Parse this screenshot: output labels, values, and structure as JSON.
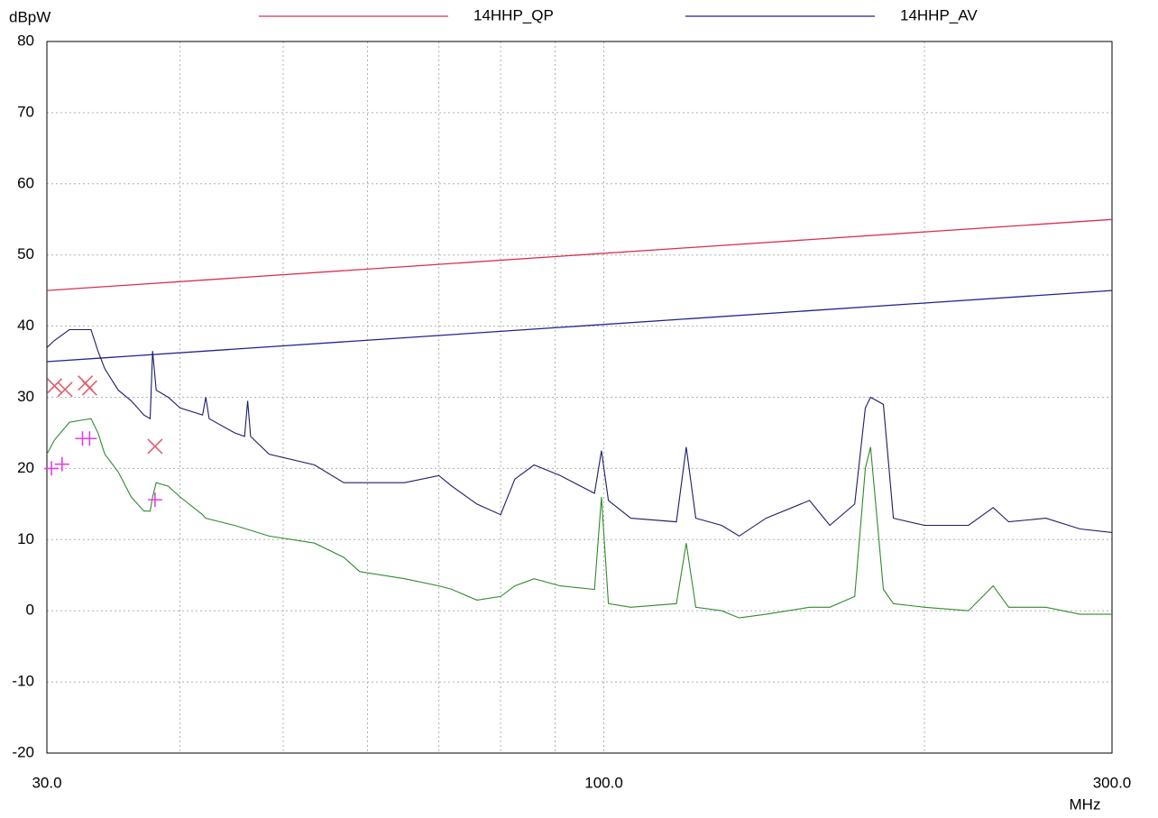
{
  "chart_data": {
    "type": "line",
    "y_label": "dBpW",
    "x_label": "MHz",
    "xscale": "log",
    "xlim": [
      30,
      300
    ],
    "ylim": [
      -20,
      80
    ],
    "yticks": [
      -20,
      -10,
      0,
      10,
      20,
      30,
      40,
      50,
      60,
      70,
      80
    ],
    "xticks": [
      {
        "value": 30,
        "label": "30.0"
      },
      {
        "value": 100,
        "label": "100.0"
      },
      {
        "value": 300,
        "label": "300.0"
      }
    ],
    "x_grid": [
      40,
      50,
      60,
      70,
      80,
      90,
      200
    ],
    "grid": true,
    "series": [
      {
        "name": "14HHP_QP",
        "color": "#d9304f",
        "x": [
          30,
          300
        ],
        "values": [
          45,
          55
        ]
      },
      {
        "name": "14HHP_AV",
        "color": "#23238f",
        "x": [
          30,
          300
        ],
        "values": [
          35,
          45
        ]
      }
    ],
    "traces": [
      {
        "color": "#1c1c6b",
        "x": [
          30,
          30.5,
          31.5,
          33,
          33.5,
          34,
          35,
          36,
          37,
          37.5,
          37.7,
          38,
          39,
          40,
          42,
          42.3,
          42.6,
          45,
          46,
          46.3,
          46.6,
          48.5,
          53.5,
          57,
          59,
          65,
          70,
          72,
          76,
          80,
          82.5,
          86,
          91,
          98,
          99.5,
          101,
          106,
          117,
          119.5,
          122,
          129,
          134,
          142,
          156,
          163,
          172,
          176,
          178,
          183,
          187,
          200,
          220,
          232,
          240,
          260,
          280,
          300
        ],
        "values": [
          37,
          38,
          39.5,
          39.5,
          36.5,
          34,
          31,
          29.5,
          27.5,
          27,
          36.5,
          31,
          30,
          28.5,
          27.5,
          30,
          27,
          25,
          24.5,
          29.5,
          24.5,
          22,
          20.5,
          18,
          18,
          18,
          19,
          17.5,
          15,
          13.5,
          18.5,
          20.5,
          19,
          16.5,
          22.5,
          15.5,
          13,
          12.5,
          23,
          13,
          12,
          10.5,
          13,
          15.5,
          12,
          15,
          28.5,
          30,
          29,
          13,
          12,
          12,
          14.5,
          12.5,
          13,
          11.5,
          11
        ]
      },
      {
        "color": "#2e8b2e",
        "x": [
          30,
          30.5,
          31.5,
          33,
          33.5,
          34,
          35,
          36,
          37,
          37.5,
          37.7,
          38,
          39,
          40,
          42,
          42.3,
          45,
          48.5,
          53.5,
          57,
          59,
          65,
          70,
          72,
          76,
          80,
          82.5,
          86,
          91,
          98,
          99.5,
          101,
          106,
          117,
          119.5,
          122,
          129,
          134,
          142,
          156,
          163,
          172,
          176,
          178,
          183,
          187,
          200,
          220,
          232,
          240,
          260,
          280,
          300
        ],
        "values": [
          22,
          24,
          26.5,
          27,
          25,
          22,
          19.5,
          16,
          14,
          14,
          16,
          18,
          17.5,
          16,
          13.5,
          13,
          12,
          10.5,
          9.5,
          7.5,
          5.5,
          4.5,
          3.5,
          3,
          1.5,
          2,
          3.5,
          4.5,
          3.5,
          3,
          16,
          1,
          0.5,
          1,
          9.5,
          0.5,
          0,
          -1,
          -0.5,
          0.5,
          0.5,
          2,
          20,
          23,
          3,
          1,
          0.5,
          0,
          3.5,
          0.5,
          0.5,
          -0.5,
          -0.5
        ]
      }
    ],
    "markers": [
      {
        "shape": "x",
        "color": "#e06070",
        "x": [
          30.5,
          31.2,
          32.6,
          32.9,
          37.9
        ],
        "values": [
          31.6,
          31.1,
          32,
          31.3,
          23.1
        ]
      },
      {
        "shape": "+",
        "color": "#e040e0",
        "x": [
          30.3,
          31,
          32.4,
          32.9,
          37.9
        ],
        "values": [
          20,
          20.6,
          24.2,
          24.2,
          15.6
        ]
      }
    ]
  }
}
